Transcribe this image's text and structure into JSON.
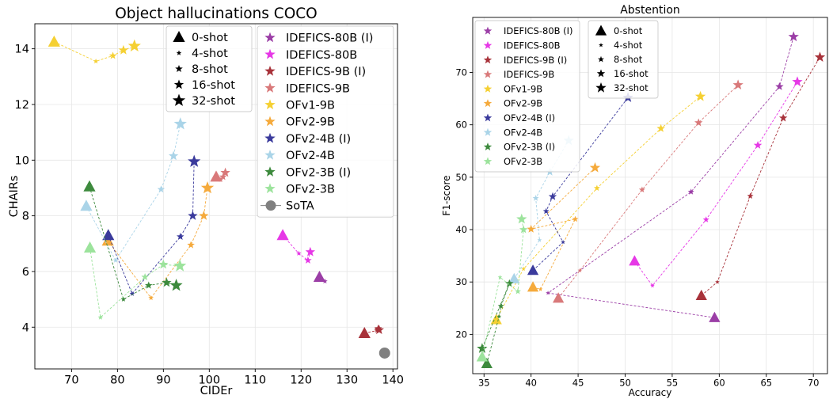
{
  "chart_data": [
    {
      "type": "scatter",
      "title": "Object hallucinations COCO",
      "xlabel": "CIDEr",
      "ylabel": "CHAIRs",
      "xlim": [
        62,
        141
      ],
      "ylim": [
        2.5,
        14.9
      ],
      "xticks": [
        70,
        80,
        90,
        100,
        110,
        120,
        130,
        140
      ],
      "yticks": [
        4,
        6,
        8,
        10,
        12,
        14
      ],
      "grid": true,
      "shot_legend": {
        "placement": "top-center",
        "items": [
          {
            "label": "0-shot",
            "marker": "triangle"
          },
          {
            "label": "4-shot",
            "marker": "star",
            "size": 4
          },
          {
            "label": "8-shot",
            "marker": "star",
            "size": 6
          },
          {
            "label": "16-shot",
            "marker": "star",
            "size": 8
          },
          {
            "label": "32-shot",
            "marker": "star",
            "size": 10
          }
        ]
      },
      "model_legend": {
        "placement": "top-right",
        "items": [
          "IDEFICS-80B (I)",
          "IDEFICS-80B",
          "IDEFICS-9B (I)",
          "IDEFICS-9B",
          "OFv1-9B",
          "OFv2-9B",
          "OFv2-4B (I)",
          "OFv2-4B",
          "OFv2-3B (I)",
          "OFv2-3B",
          "SoTA"
        ]
      },
      "series": [
        {
          "name": "IDEFICS-80B (I)",
          "color": "#9b3ea6",
          "points": [
            [
              124,
              5.8
            ],
            [
              125.2,
              5.65
            ]
          ]
        },
        {
          "name": "IDEFICS-80B",
          "color": "#e638e6",
          "points": [
            [
              116,
              7.3
            ],
            [
              119.5,
              6.65
            ],
            [
              121.5,
              6.4
            ],
            [
              122,
              6.7
            ]
          ]
        },
        {
          "name": "IDEFICS-9B (I)",
          "color": "#a8323a",
          "points": [
            [
              133.8,
              3.78
            ],
            [
              136.5,
              3.88
            ],
            [
              136.8,
              3.95
            ],
            [
              137,
              3.9
            ]
          ]
        },
        {
          "name": "IDEFICS-9B",
          "color": "#d9797a",
          "points": [
            [
              101.5,
              9.4
            ],
            [
              102.5,
              9.3
            ],
            [
              103,
              9.4
            ],
            [
              103.5,
              9.55
            ]
          ]
        },
        {
          "name": "OFv1-9B",
          "color": "#f5d033",
          "points": [
            [
              66.2,
              14.25
            ],
            [
              75.3,
              13.55
            ],
            [
              79,
              13.75
            ],
            [
              81.3,
              13.95
            ],
            [
              83.7,
              14.1
            ]
          ]
        },
        {
          "name": "OFv2-9B",
          "color": "#f5aa3c",
          "points": [
            [
              77.9,
              7.1
            ],
            [
              87.3,
              5.05
            ],
            [
              96,
              6.95
            ],
            [
              98.8,
              8.0
            ],
            [
              99.6,
              9.0
            ]
          ]
        },
        {
          "name": "OFv2-4B (I)",
          "color": "#3a3a9c",
          "points": [
            [
              78,
              7.3
            ],
            [
              83.2,
              5.2
            ],
            [
              93.7,
              7.25
            ],
            [
              96.4,
              8.0
            ],
            [
              96.7,
              9.95
            ]
          ]
        },
        {
          "name": "OFv2-4B",
          "color": "#aad4e8",
          "points": [
            [
              73.2,
              8.35
            ],
            [
              79.6,
              6.4
            ],
            [
              89.5,
              8.95
            ],
            [
              92.2,
              10.15
            ],
            [
              93.7,
              11.3
            ]
          ]
        },
        {
          "name": "OFv2-3B (I)",
          "color": "#3d8a3d",
          "points": [
            [
              73.9,
              9.05
            ],
            [
              81.3,
              5.0
            ],
            [
              86.8,
              5.5
            ],
            [
              90.7,
              5.6
            ],
            [
              92.8,
              5.5
            ]
          ]
        },
        {
          "name": "OFv2-3B",
          "color": "#9ce39c",
          "points": [
            [
              74,
              6.85
            ],
            [
              76.3,
              4.35
            ],
            [
              86,
              5.8
            ],
            [
              90,
              6.25
            ],
            [
              93.6,
              6.2
            ]
          ]
        },
        {
          "name": "SoTA",
          "color": "#808080",
          "points": [
            [
              138.2,
              3.07
            ]
          ]
        }
      ]
    },
    {
      "type": "scatter",
      "title": "Abstention",
      "xlabel": "Accuracy",
      "ylabel": "F1-score",
      "xlim": [
        33.8,
        71.5
      ],
      "ylim": [
        12.5,
        80.5
      ],
      "xticks": [
        35,
        40,
        45,
        50,
        55,
        60,
        65,
        70
      ],
      "yticks": [
        20,
        30,
        40,
        50,
        60,
        70
      ],
      "grid": true,
      "model_legend": {
        "placement": "top-left",
        "items": [
          "IDEFICS-80B (I)",
          "IDEFICS-80B",
          "IDEFICS-9B (I)",
          "IDEFICS-9B",
          "OFv1-9B",
          "OFv2-9B",
          "OFv2-4B (I)",
          "OFv2-4B",
          "OFv2-3B (I)",
          "OFv2-3B"
        ]
      },
      "shot_legend": {
        "placement": "top-center",
        "items": [
          {
            "label": "0-shot",
            "marker": "triangle"
          },
          {
            "label": "4-shot",
            "marker": "star",
            "size": 4
          },
          {
            "label": "8-shot",
            "marker": "star",
            "size": 6
          },
          {
            "label": "16-shot",
            "marker": "star",
            "size": 8
          },
          {
            "label": "32-shot",
            "marker": "star",
            "size": 10
          }
        ]
      },
      "series": [
        {
          "name": "IDEFICS-80B (I)",
          "color": "#9b3ea6",
          "points": [
            [
              59.5,
              23.2
            ],
            [
              41.8,
              27.9
            ],
            [
              57,
              47.2
            ],
            [
              66.4,
              67.3
            ],
            [
              67.9,
              76.8
            ]
          ]
        },
        {
          "name": "IDEFICS-80B",
          "color": "#e638e6",
          "points": [
            [
              51,
              34
            ],
            [
              52.9,
              29.3
            ],
            [
              58.6,
              41.9
            ],
            [
              64.1,
              56.1
            ],
            [
              68.3,
              68.2
            ]
          ]
        },
        {
          "name": "IDEFICS-9B (I)",
          "color": "#a8323a",
          "points": [
            [
              58.1,
              27.4
            ],
            [
              59.8,
              30
            ],
            [
              63.3,
              46.4
            ],
            [
              66.8,
              61.3
            ],
            [
              70.7,
              72.9
            ]
          ]
        },
        {
          "name": "IDEFICS-9B",
          "color": "#d9797a",
          "points": [
            [
              42.9,
              26.9
            ],
            [
              45.2,
              32.2
            ],
            [
              51.8,
              47.6
            ],
            [
              57.8,
              60.4
            ],
            [
              62,
              67.6
            ]
          ]
        },
        {
          "name": "OFv1-9B",
          "color": "#f5d033",
          "points": [
            [
              36.3,
              22.8
            ],
            [
              39.2,
              32.5
            ],
            [
              47,
              47.9
            ],
            [
              53.8,
              59.3
            ],
            [
              58,
              65.4
            ]
          ]
        },
        {
          "name": "OFv2-9B",
          "color": "#f5aa3c",
          "points": [
            [
              40.2,
              29
            ],
            [
              41,
              28.6
            ],
            [
              44.7,
              42
            ],
            [
              40,
              40.1
            ],
            [
              46.8,
              51.8
            ]
          ]
        },
        {
          "name": "OFv2-4B (I)",
          "color": "#3a3a9c",
          "points": [
            [
              40.2,
              32.2
            ],
            [
              43.4,
              37.6
            ],
            [
              41.6,
              43.5
            ],
            [
              42.3,
              46.3
            ],
            [
              50.3,
              65.2
            ]
          ]
        },
        {
          "name": "OFv2-4B",
          "color": "#aad4e8",
          "points": [
            [
              38.2,
              30.6
            ],
            [
              40.9,
              38
            ],
            [
              40.5,
              46
            ],
            [
              42,
              51
            ],
            [
              44,
              57
            ]
          ]
        },
        {
          "name": "OFv2-3B (I)",
          "color": "#3d8a3d",
          "points": [
            [
              35.3,
              14.4
            ],
            [
              36.6,
              23.4
            ],
            [
              36.8,
              25.4
            ],
            [
              37.7,
              29.7
            ],
            [
              34.8,
              17.3
            ]
          ]
        },
        {
          "name": "OFv2-3B",
          "color": "#9ce39c",
          "points": [
            [
              34.8,
              15.7
            ],
            [
              36.7,
              30.9
            ],
            [
              38.6,
              28.2
            ],
            [
              39.2,
              40
            ],
            [
              39,
              42
            ]
          ]
        }
      ]
    }
  ]
}
